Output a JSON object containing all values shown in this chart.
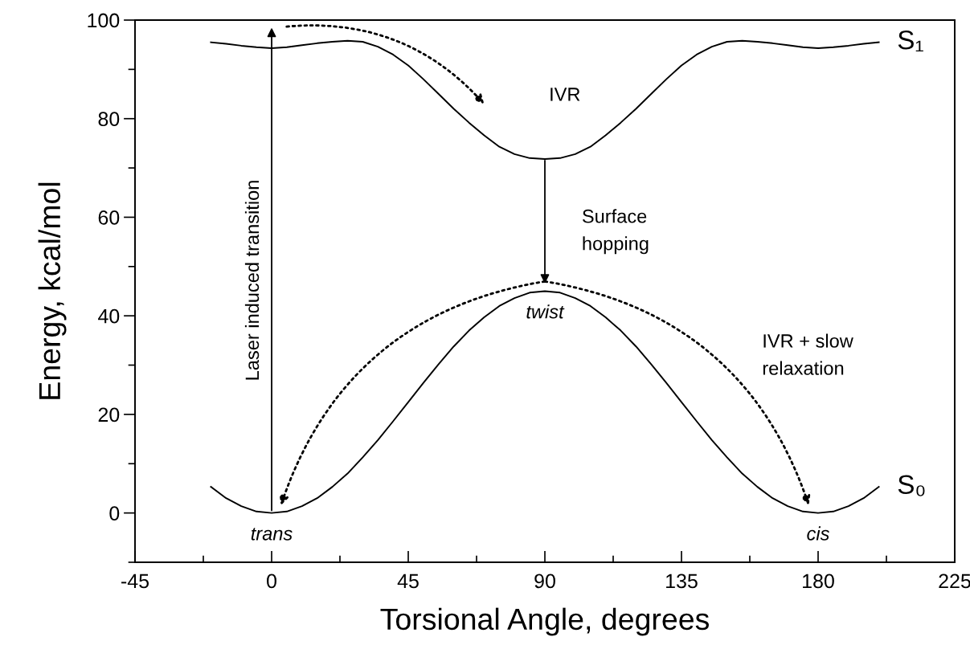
{
  "chart_data": {
    "type": "line",
    "xlabel": "Torsional Angle, degrees",
    "ylabel": "Energy, kcal/mol",
    "xlim": [
      -45,
      225
    ],
    "xticks": [
      -45,
      0,
      45,
      90,
      135,
      180,
      225
    ],
    "ylim": [
      -10,
      100
    ],
    "yticks": [
      0,
      20,
      40,
      60,
      80,
      100
    ],
    "grid": false,
    "legend": false,
    "marker": "none",
    "series": [
      {
        "name": "S₁",
        "color": "#000000",
        "line_style": "solid",
        "x": [
          -20,
          -15,
          -10,
          -5,
          0,
          5,
          10,
          15,
          20,
          25,
          30,
          35,
          40,
          45,
          50,
          55,
          60,
          65,
          70,
          75,
          80,
          85,
          90,
          95,
          100,
          105,
          110,
          115,
          120,
          125,
          130,
          135,
          140,
          145,
          150,
          155,
          160,
          165,
          170,
          175,
          180,
          185,
          190,
          195,
          200
        ],
        "values": [
          95.5,
          95.2,
          94.8,
          94.5,
          94.3,
          94.5,
          94.9,
          95.3,
          95.6,
          95.8,
          95.6,
          94.6,
          93,
          90.8,
          88,
          85,
          82,
          79.2,
          76.6,
          74.3,
          72.8,
          72,
          71.8,
          72,
          72.8,
          74.3,
          76.6,
          79.2,
          82,
          85,
          88,
          90.8,
          93,
          94.6,
          95.6,
          95.8,
          95.6,
          95.3,
          94.9,
          94.5,
          94.3,
          94.5,
          94.8,
          95.2,
          95.5
        ]
      },
      {
        "name": "S₀",
        "color": "#000000",
        "line_style": "solid",
        "x": [
          -20,
          -15,
          -10,
          -5,
          0,
          5,
          10,
          15,
          20,
          25,
          30,
          35,
          40,
          45,
          50,
          55,
          60,
          65,
          70,
          75,
          80,
          85,
          90,
          95,
          100,
          105,
          110,
          115,
          120,
          125,
          130,
          135,
          140,
          145,
          150,
          155,
          160,
          165,
          170,
          175,
          180,
          185,
          190,
          195,
          200
        ],
        "values": [
          5.3,
          3,
          1.4,
          0.3,
          0,
          0.3,
          1.4,
          3,
          5.3,
          8,
          11.3,
          14.8,
          18.6,
          22.5,
          26.4,
          30.2,
          33.8,
          37,
          39.7,
          42,
          43.6,
          44.7,
          45,
          44.7,
          43.6,
          42,
          39.7,
          37,
          33.8,
          30.2,
          26.4,
          22.5,
          18.6,
          14.8,
          11.3,
          8,
          5.3,
          3,
          1.4,
          0.3,
          0,
          0.3,
          1.4,
          3,
          5.3
        ]
      }
    ],
    "annotations": [
      {
        "text": "trans",
        "x": 0,
        "y": 0
      },
      {
        "text": "twist",
        "x": 90,
        "y": 45
      },
      {
        "text": "cis",
        "x": 180,
        "y": 0
      },
      "IVR",
      "Surface\nhopping",
      "IVR + slow\nrelaxation",
      "Laser induced transition"
    ]
  }
}
